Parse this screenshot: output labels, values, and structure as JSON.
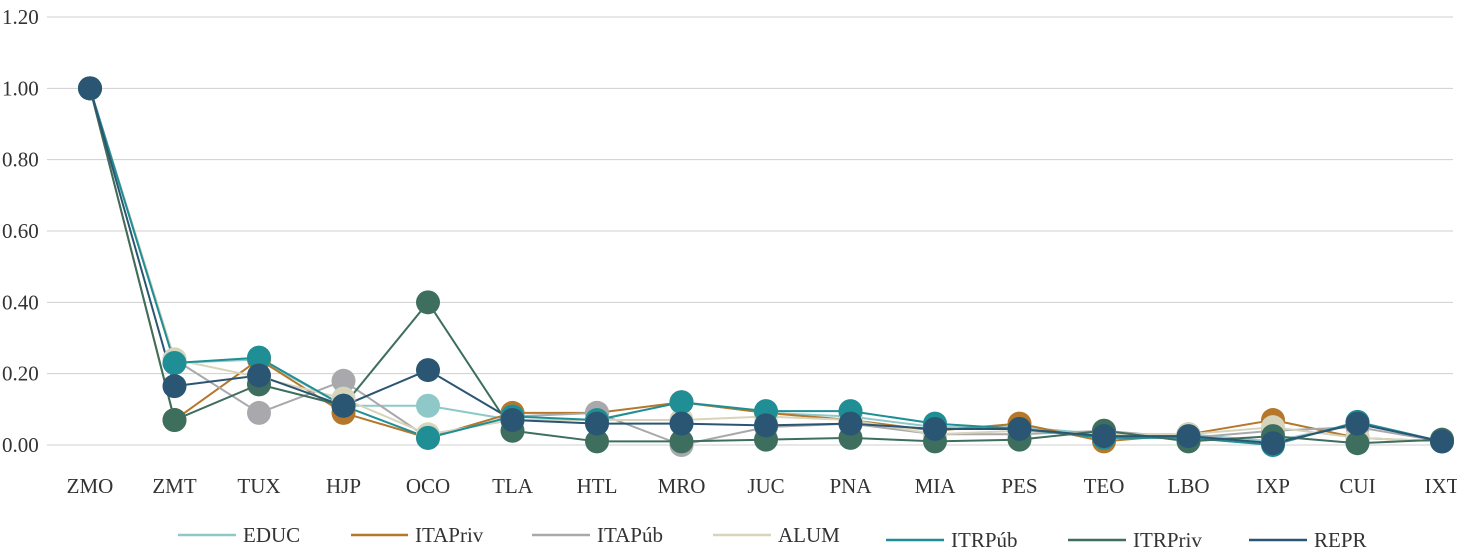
{
  "chart_data": {
    "type": "line",
    "title": "",
    "xlabel": "",
    "ylabel": "",
    "ylim": [
      0,
      1.2
    ],
    "yticks": [
      "0.00",
      "0.20",
      "0.40",
      "0.60",
      "0.80",
      "1.00",
      "1.20"
    ],
    "grid": "horizontal",
    "legend_position": "bottom",
    "categories": [
      "ZMO",
      "ZMT",
      "TUX",
      "HJP",
      "OCO",
      "TLA",
      "HTL",
      "MRO",
      "JUC",
      "PNA",
      "MIA",
      "PES",
      "TEO",
      "LBO",
      "IXP",
      "CUI",
      "IXT"
    ],
    "series": [
      {
        "name": "EDUC",
        "color": "#8fc8c8",
        "values": [
          1.0,
          0.23,
          0.24,
          0.11,
          0.11,
          0.07,
          0.07,
          0.12,
          0.09,
          0.08,
          0.05,
          0.05,
          0.03,
          0.03,
          0.01,
          0.06,
          0.01
        ]
      },
      {
        "name": "ITAPriv",
        "color": "#b5772b",
        "values": [
          1.0,
          0.07,
          0.24,
          0.09,
          0.02,
          0.09,
          0.09,
          0.12,
          0.09,
          0.07,
          0.04,
          0.06,
          0.01,
          0.03,
          0.07,
          0.02,
          0.01
        ]
      },
      {
        "name": "ITAPúb",
        "color": "#a9a9ad",
        "values": [
          1.0,
          0.24,
          0.09,
          0.18,
          0.02,
          0.08,
          0.09,
          0.0,
          0.05,
          0.06,
          0.03,
          0.03,
          0.04,
          0.02,
          0.04,
          0.05,
          0.01
        ]
      },
      {
        "name": "ALUM",
        "color": "#d7d4bc",
        "values": [
          1.0,
          0.24,
          0.19,
          0.13,
          0.03,
          0.07,
          0.07,
          0.07,
          0.08,
          0.07,
          0.03,
          0.04,
          0.03,
          0.03,
          0.05,
          0.02,
          0.01
        ]
      },
      {
        "name": "ITRPúb",
        "color": "#1f8f95",
        "values": [
          1.0,
          0.23,
          0.245,
          0.11,
          0.02,
          0.08,
          0.07,
          0.12,
          0.095,
          0.095,
          0.06,
          0.045,
          0.02,
          0.02,
          0.0,
          0.065,
          0.01
        ]
      },
      {
        "name": "ITRPriv",
        "color": "#3e6e5e",
        "values": [
          1.0,
          0.07,
          0.17,
          0.11,
          0.4,
          0.04,
          0.01,
          0.01,
          0.015,
          0.02,
          0.01,
          0.015,
          0.04,
          0.01,
          0.025,
          0.005,
          0.015
        ]
      },
      {
        "name": "REPR",
        "color": "#2a5673",
        "values": [
          1.0,
          0.165,
          0.195,
          0.11,
          0.21,
          0.07,
          0.06,
          0.06,
          0.055,
          0.06,
          0.045,
          0.045,
          0.025,
          0.025,
          0.005,
          0.06,
          0.01
        ]
      }
    ]
  }
}
